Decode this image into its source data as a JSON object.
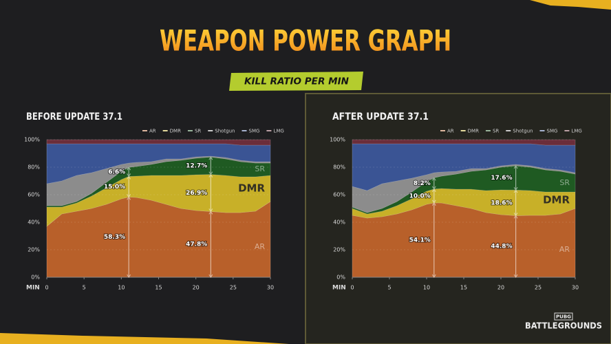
{
  "header": {
    "title": "WEAPON POWER GRAPH",
    "subtitle": "KILL RATIO PER MIN"
  },
  "logo": {
    "brand": "PUBG",
    "name": "BATTLEGROUNDS"
  },
  "chart_data": [
    {
      "type": "stacked-area",
      "title": "BEFORE UPDATE 37.1",
      "xlabel": "MIN",
      "x": [
        0,
        2,
        4,
        6,
        8,
        10,
        11,
        12,
        14,
        16,
        18,
        20,
        22,
        24,
        26,
        28,
        30
      ],
      "xlim": [
        0,
        30
      ],
      "xticks": [
        0,
        5,
        10,
        15,
        20,
        25,
        30
      ],
      "ylim": [
        0,
        100
      ],
      "yticks": [
        {
          "value": 0,
          "label": "0%"
        },
        {
          "value": 20,
          "label": "20%"
        },
        {
          "value": 40,
          "label": "40%"
        },
        {
          "value": 60,
          "label": "60%"
        },
        {
          "value": 80,
          "label": "80%"
        },
        {
          "value": 100,
          "label": "100%"
        }
      ],
      "grid": true,
      "series": [
        {
          "name": "AR",
          "color": "#b8602a",
          "values": [
            37,
            46,
            48,
            50,
            53,
            57,
            58.3,
            58,
            56,
            53,
            50,
            48.5,
            47.8,
            47,
            47,
            48,
            55
          ],
          "value_labels": [
            null,
            null,
            null,
            null,
            null,
            null,
            "58.3%",
            null,
            null,
            null,
            null,
            null,
            "47.8%",
            null,
            null,
            null,
            null
          ]
        },
        {
          "name": "DMR",
          "color": "#c8b028",
          "values": [
            14,
            5,
            6,
            9,
            12,
            14,
            15.0,
            15.5,
            18,
            21,
            24,
            26,
            26.9,
            27,
            26,
            25,
            19
          ],
          "value_labels": [
            null,
            null,
            null,
            null,
            null,
            null,
            "15.0%",
            null,
            null,
            null,
            null,
            null,
            "26.9%",
            null,
            null,
            null,
            null
          ]
        },
        {
          "name": "SR",
          "color": "#1f5a22",
          "values": [
            1,
            1,
            1,
            2,
            4,
            6,
            6.6,
            7,
            8,
            10,
            11,
            12,
            12.7,
            12,
            11,
            10,
            9
          ],
          "value_labels": [
            null,
            null,
            null,
            null,
            null,
            null,
            "6.6%",
            null,
            null,
            null,
            null,
            null,
            "12.7%",
            null,
            null,
            null,
            null
          ]
        },
        {
          "name": "Shotgun",
          "color": "#8c8c8c",
          "values": [
            16,
            18,
            19,
            15,
            10,
            5,
            3.1,
            3,
            2,
            2,
            1,
            1,
            0.6,
            1,
            1,
            1,
            1
          ]
        },
        {
          "name": "SMG",
          "color": "#3a5494",
          "values": [
            29,
            27,
            23,
            21,
            18,
            15,
            14,
            13.5,
            13,
            11,
            11,
            9.5,
            9,
            10,
            11,
            12,
            12
          ]
        },
        {
          "name": "LMG",
          "color": "#6b2d3a",
          "values": [
            3,
            3,
            3,
            3,
            3,
            3,
            3,
            3,
            3,
            3,
            3,
            3,
            3,
            3,
            4,
            4,
            4
          ]
        }
      ]
    },
    {
      "type": "stacked-area",
      "title": "AFTER UPDATE 37.1",
      "xlabel": "MIN",
      "x": [
        0,
        2,
        4,
        6,
        8,
        10,
        11,
        12,
        14,
        16,
        18,
        20,
        22,
        24,
        26,
        28,
        30
      ],
      "xlim": [
        0,
        30
      ],
      "xticks": [
        0,
        5,
        10,
        15,
        20,
        25,
        30
      ],
      "ylim": [
        0,
        100
      ],
      "yticks": [
        {
          "value": 0,
          "label": "0%"
        },
        {
          "value": 20,
          "label": "20%"
        },
        {
          "value": 40,
          "label": "40%"
        },
        {
          "value": 60,
          "label": "60%"
        },
        {
          "value": 80,
          "label": "80%"
        },
        {
          "value": 100,
          "label": "100%"
        }
      ],
      "grid": true,
      "series": [
        {
          "name": "AR",
          "color": "#b8602a",
          "values": [
            45,
            43,
            44,
            46,
            49,
            53,
            54.1,
            54,
            52,
            50,
            47,
            45.5,
            44.8,
            45,
            45,
            46,
            50
          ],
          "value_labels": [
            null,
            null,
            null,
            null,
            null,
            null,
            "54.1%",
            null,
            null,
            null,
            null,
            null,
            "44.8%",
            null,
            null,
            null,
            null
          ]
        },
        {
          "name": "DMR",
          "color": "#c8b028",
          "values": [
            5,
            3,
            4,
            6,
            8,
            9.5,
            10.0,
            10.5,
            12,
            14,
            16,
            18,
            18.6,
            18,
            17,
            16,
            12
          ],
          "value_labels": [
            null,
            null,
            null,
            null,
            null,
            null,
            "10.0%",
            null,
            null,
            null,
            null,
            null,
            "18.6%",
            null,
            null,
            null,
            null
          ]
        },
        {
          "name": "SR",
          "color": "#1f5a22",
          "values": [
            1,
            1,
            2,
            3,
            5,
            7,
            8.2,
            9,
            11,
            13,
            15,
            16.5,
            17.6,
            17,
            16,
            15,
            13
          ],
          "value_labels": [
            null,
            null,
            null,
            null,
            null,
            null,
            "8.2%",
            null,
            null,
            null,
            null,
            null,
            "17.6%",
            null,
            null,
            null,
            null
          ]
        },
        {
          "name": "Shotgun",
          "color": "#8c8c8c",
          "values": [
            15,
            16,
            18,
            15,
            10,
            5,
            3.7,
            3,
            2,
            2,
            1,
            1,
            1,
            1,
            1,
            1,
            1
          ]
        },
        {
          "name": "SMG",
          "color": "#3a5494",
          "values": [
            31,
            34,
            29,
            27,
            25,
            22.5,
            21,
            20.5,
            20,
            18,
            18,
            16,
            15,
            16,
            17,
            18,
            20
          ]
        },
        {
          "name": "LMG",
          "color": "#6b2d3a",
          "values": [
            3,
            3,
            3,
            3,
            3,
            3,
            3,
            3,
            3,
            3,
            3,
            3,
            3,
            3,
            4,
            4,
            4
          ]
        }
      ]
    }
  ]
}
